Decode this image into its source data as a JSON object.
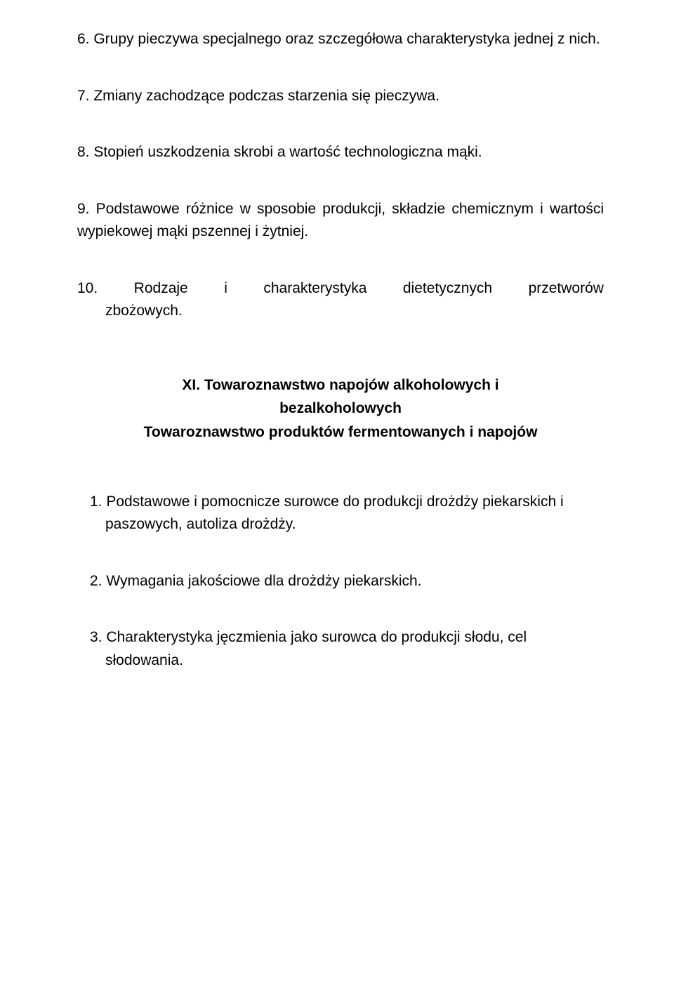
{
  "items": {
    "i6": "6. Grupy pieczywa specjalnego oraz szczegółowa charakterystyka jednej z nich.",
    "i7": "7. Zmiany zachodzące podczas starzenia się pieczywa.",
    "i8": "8. Stopień uszkodzenia skrobi a wartość technologiczna mąki.",
    "i9": "9. Podstawowe różnice w sposobie produkcji, składzie chemicznym i wartości wypiekowej mąki pszennej i żytniej.",
    "i10_w1": "10.",
    "i10_w2": "Rodzaje",
    "i10_w3": "i",
    "i10_w4": "charakterystyka",
    "i10_w5": "dietetycznych",
    "i10_w6": "przetworów",
    "i10_line2": "zbożowych."
  },
  "section": {
    "line1": "XI. Towaroznawstwo napojów alkoholowych i",
    "line2": "bezalkoholowych",
    "line3": "Towaroznawstwo produktów fermentowanych i napojów"
  },
  "subitems": {
    "s1": "1. Podstawowe i pomocnicze surowce do produkcji drożdży piekarskich i paszowych, autoliza drożdży.",
    "s2": "2. Wymagania jakościowe dla drożdży piekarskich.",
    "s3": "3. Charakterystyka jęczmienia jako surowca do produkcji słodu, cel słodowania."
  },
  "style": {
    "background_color": "#ffffff",
    "text_color": "#000000",
    "body_fontsize": 21,
    "heading_fontsize": 21,
    "heading_weight": "bold",
    "font_family": "Arial"
  }
}
